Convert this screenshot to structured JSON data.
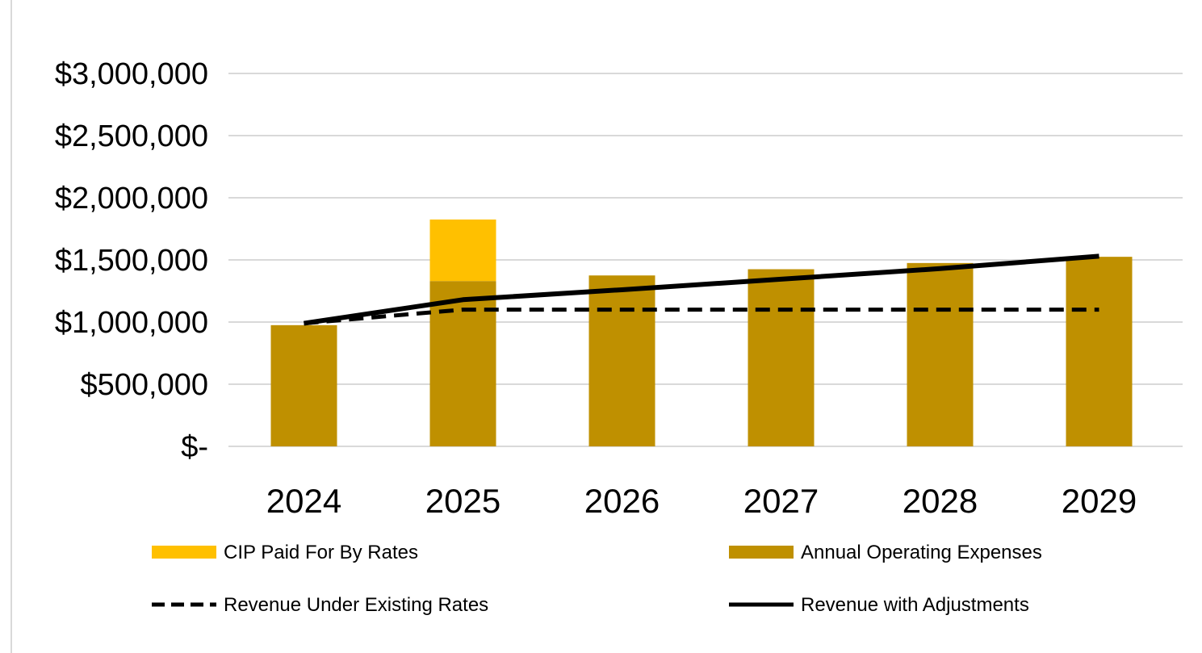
{
  "chart_data": {
    "type": "bar",
    "categories": [
      "2024",
      "2025",
      "2026",
      "2027",
      "2028",
      "2029"
    ],
    "series": [
      {
        "name": "Annual Operating Expenses",
        "kind": "stacked-bar",
        "color": "#BF9000",
        "values": [
          975000,
          1330000,
          1375000,
          1425000,
          1475000,
          1525000
        ]
      },
      {
        "name": "CIP Paid For By Rates",
        "kind": "stacked-bar",
        "color": "#FFC000",
        "values": [
          0,
          495000,
          0,
          0,
          0,
          0
        ]
      },
      {
        "name": "Revenue Under Existing Rates",
        "kind": "line",
        "style": "dashed",
        "color": "#000000",
        "values": [
          990000,
          1100000,
          1100000,
          1100000,
          1100000,
          1100000
        ]
      },
      {
        "name": "Revenue with Adjustments",
        "kind": "line",
        "style": "solid",
        "color": "#000000",
        "values": [
          990000,
          1180000,
          1260000,
          1345000,
          1430000,
          1530000
        ]
      }
    ],
    "y_ticks": [
      {
        "value": 0,
        "label": "$-"
      },
      {
        "value": 500000,
        "label": "$500,000"
      },
      {
        "value": 1000000,
        "label": "$1,000,000"
      },
      {
        "value": 1500000,
        "label": "$1,500,000"
      },
      {
        "value": 2000000,
        "label": "$2,000,000"
      },
      {
        "value": 2500000,
        "label": "$2,500,000"
      },
      {
        "value": 3000000,
        "label": "$3,000,000"
      }
    ],
    "ylim": [
      0,
      3000000
    ],
    "title": "",
    "xlabel": "",
    "ylabel": "",
    "grid": true,
    "legend": {
      "position": "bottom",
      "entries": [
        {
          "label": "CIP Paid For By Rates",
          "swatch": "bar",
          "color": "#FFC000"
        },
        {
          "label": "Annual Operating Expenses",
          "swatch": "bar",
          "color": "#BF9000"
        },
        {
          "label": "Revenue Under Existing Rates",
          "swatch": "dashed-line",
          "color": "#000000"
        },
        {
          "label": "Revenue with Adjustments",
          "swatch": "solid-line",
          "color": "#000000"
        }
      ]
    },
    "colors": {
      "gridline": "#D9D9D9",
      "frame": "#D9D9D9"
    }
  }
}
